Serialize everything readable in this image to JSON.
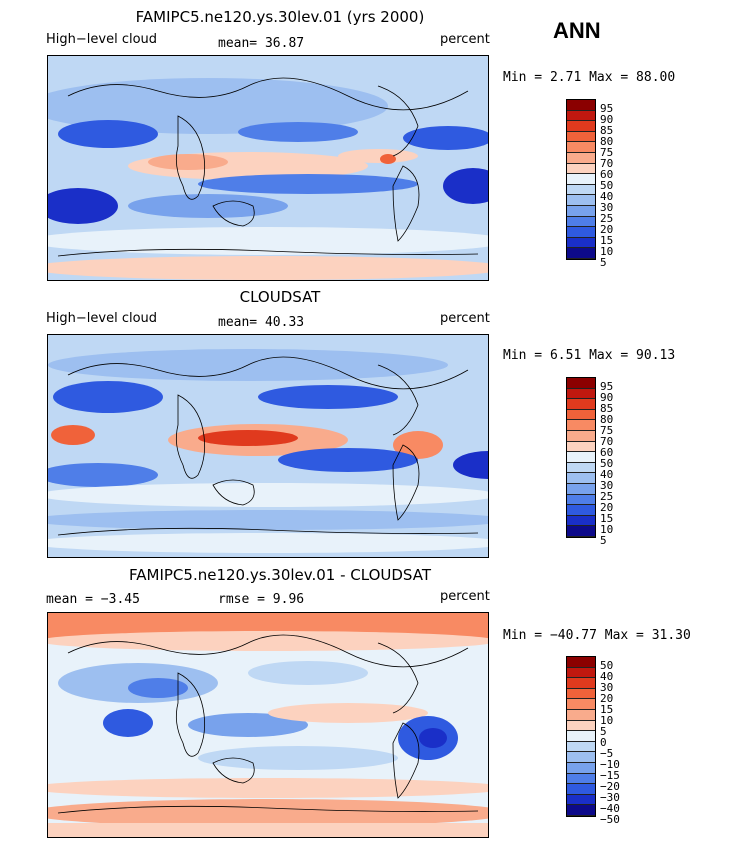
{
  "season_label": "ANN",
  "panels": [
    {
      "title": "FAMIPC5.ne120.ys.30lev.01 (yrs 2000)",
      "left_label": "High−level cloud",
      "stat1": "mean=  36.87",
      "units": "percent",
      "minmax": "Min =   2.71 Max =  88.00",
      "colorbar": {
        "labels": [
          "95",
          "90",
          "85",
          "80",
          "75",
          "70",
          "60",
          "50",
          "40",
          "30",
          "25",
          "20",
          "15",
          "10",
          "5"
        ],
        "colors": [
          "#8b0000",
          "#c0180f",
          "#e03a1e",
          "#f0623a",
          "#f88a63",
          "#f9ab8c",
          "#fcd2bf",
          "#e8f2fa",
          "#bfd8f4",
          "#9dbff0",
          "#78a2ec",
          "#4f7ee8",
          "#2f5ae0",
          "#1a2fc8",
          "#0d0a8a"
        ]
      }
    },
    {
      "title": "CLOUDSAT",
      "left_label": "High−level cloud",
      "stat1": "mean=  40.33",
      "units": "percent",
      "minmax": "Min =   6.51 Max =  90.13",
      "colorbar": {
        "labels": [
          "95",
          "90",
          "85",
          "80",
          "75",
          "70",
          "60",
          "50",
          "40",
          "30",
          "25",
          "20",
          "15",
          "10",
          "5"
        ],
        "colors": [
          "#8b0000",
          "#c0180f",
          "#e03a1e",
          "#f0623a",
          "#f88a63",
          "#f9ab8c",
          "#fcd2bf",
          "#e8f2fa",
          "#bfd8f4",
          "#9dbff0",
          "#78a2ec",
          "#4f7ee8",
          "#2f5ae0",
          "#1a2fc8",
          "#0d0a8a"
        ]
      }
    },
    {
      "title": "FAMIPC5.ne120.ys.30lev.01 - CLOUDSAT",
      "left_label": "mean =  −3.45",
      "stat1": "rmse =   9.96",
      "units": "percent",
      "minmax": "Min = −40.77 Max =  31.30",
      "colorbar": {
        "labels": [
          "50",
          "40",
          "30",
          "20",
          "15",
          "10",
          "5",
          "0",
          "−5",
          "−10",
          "−15",
          "−20",
          "−30",
          "−40",
          "−50"
        ],
        "colors": [
          "#8b0000",
          "#c0180f",
          "#e03a1e",
          "#f0623a",
          "#f88a63",
          "#f9ab8c",
          "#fcd2bf",
          "#e8f2fa",
          "#bfd8f4",
          "#9dbff0",
          "#78a2ec",
          "#4f7ee8",
          "#2f5ae0",
          "#1a2fc8",
          "#0d0a8a"
        ]
      }
    }
  ]
}
